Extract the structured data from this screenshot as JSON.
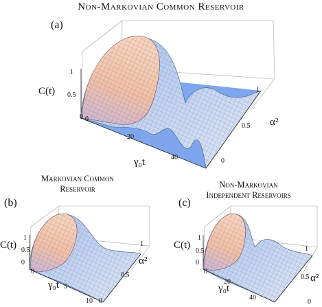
{
  "figure": {
    "title": "Non-Markovian Common Reservoir",
    "panels": [
      {
        "letter": "(a)",
        "subtitle_lines": [],
        "zlabel": "C(t)",
        "xlabel": "γ₀t",
        "ylabel": "α²",
        "x_ticks": [
          "0",
          "20",
          "40"
        ],
        "y_ticks": [
          "0",
          "0.5",
          "1"
        ],
        "z_ticks": [
          "0",
          "0.5",
          "1"
        ]
      },
      {
        "letter": "(b)",
        "subtitle_lines": [
          "Markovian Common",
          "Reservoir"
        ],
        "zlabel": "C(t)",
        "xlabel": "γ₀t",
        "ylabel": "α²",
        "x_ticks": [
          "0",
          "5",
          "10"
        ],
        "y_ticks": [
          "0",
          "0.5",
          "1"
        ],
        "z_ticks": [
          "0",
          "0.5",
          "1"
        ]
      },
      {
        "letter": "(c)",
        "subtitle_lines": [
          "Non-Markovian",
          "Independent Reservoirs"
        ],
        "zlabel": "C(t)",
        "xlabel": "γ₀t",
        "ylabel": "α²",
        "x_ticks": [
          "0",
          "20",
          "40"
        ],
        "y_ticks": [
          "0",
          "0.5",
          "1"
        ],
        "z_ticks": [
          "0",
          "0.5",
          "1"
        ]
      }
    ]
  },
  "colors": {
    "surface_high": "#f0b49a",
    "surface_low": "#8fb0e6",
    "floor": "#7ea6ee",
    "box": "#bdbdbd"
  }
}
